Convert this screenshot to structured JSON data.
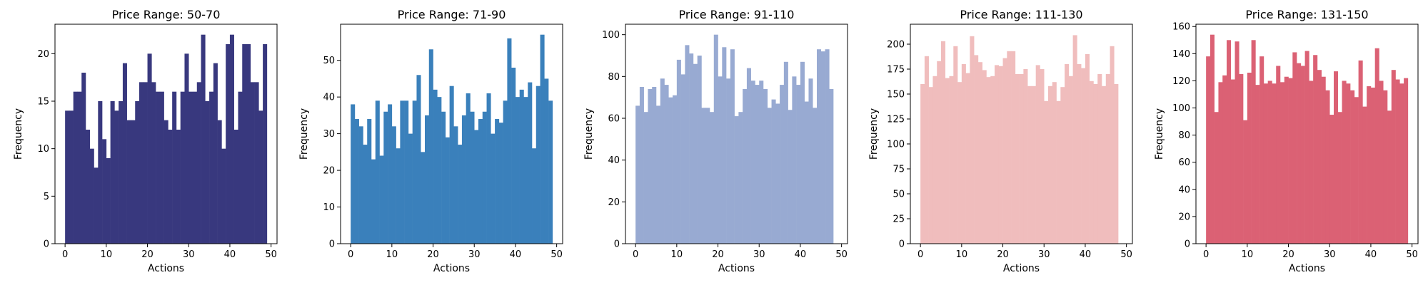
{
  "chart_data": [
    {
      "type": "bar",
      "title": "Price Range: 50-70",
      "xlabel": "Actions",
      "ylabel": "Frequency",
      "color": "#38387e",
      "xlim": [
        -2.45,
        51.45
      ],
      "ylim": [
        0,
        23.1
      ],
      "xticks": [
        0,
        10,
        20,
        30,
        40,
        50
      ],
      "yticks": [
        0,
        5,
        10,
        15,
        20
      ],
      "x": [
        0,
        1,
        2,
        3,
        4,
        5,
        6,
        7,
        8,
        9,
        10,
        11,
        12,
        13,
        14,
        15,
        16,
        17,
        18,
        19,
        20,
        21,
        22,
        23,
        24,
        25,
        26,
        27,
        28,
        29,
        30,
        31,
        32,
        33,
        34,
        35,
        36,
        37,
        38,
        39,
        40,
        41,
        42,
        43,
        44,
        45,
        46,
        47,
        48,
        49
      ],
      "values": [
        14,
        14,
        16,
        16,
        18,
        12,
        10,
        8,
        15,
        11,
        9,
        15,
        14,
        15,
        19,
        13,
        13,
        15,
        17,
        17,
        20,
        17,
        16,
        16,
        13,
        12,
        16,
        12,
        16,
        20,
        16,
        16,
        17,
        22,
        15,
        16,
        19,
        13,
        10,
        21,
        22,
        12,
        16,
        21,
        21,
        17,
        17,
        14,
        21,
        0
      ]
    },
    {
      "type": "bar",
      "title": "Price Range: 71-90",
      "xlabel": "Actions",
      "ylabel": "Frequency",
      "color": "#3a80bb",
      "xlim": [
        -2.45,
        51.45
      ],
      "ylim": [
        0,
        59.85
      ],
      "xticks": [
        0,
        10,
        20,
        30,
        40,
        50
      ],
      "yticks": [
        0,
        10,
        20,
        30,
        40,
        50
      ],
      "x": [
        0,
        1,
        2,
        3,
        4,
        5,
        6,
        7,
        8,
        9,
        10,
        11,
        12,
        13,
        14,
        15,
        16,
        17,
        18,
        19,
        20,
        21,
        22,
        23,
        24,
        25,
        26,
        27,
        28,
        29,
        30,
        31,
        32,
        33,
        34,
        35,
        36,
        37,
        38,
        39,
        40,
        41,
        42,
        43,
        44,
        45,
        46,
        47,
        48,
        49
      ],
      "values": [
        38,
        34,
        32,
        27,
        34,
        23,
        39,
        24,
        36,
        38,
        32,
        26,
        39,
        39,
        30,
        39,
        46,
        25,
        35,
        53,
        42,
        40,
        36,
        29,
        43,
        32,
        27,
        35,
        41,
        36,
        31,
        34,
        36,
        41,
        30,
        34,
        33,
        39,
        56,
        48,
        40,
        42,
        40,
        44,
        26,
        43,
        57,
        45,
        39,
        0
      ]
    },
    {
      "type": "bar",
      "title": "Price Range: 91-110",
      "xlabel": "Actions",
      "ylabel": "Frequency",
      "color": "#98aad2",
      "xlim": [
        -2.45,
        51.45
      ],
      "ylim": [
        0,
        105
      ],
      "xticks": [
        0,
        10,
        20,
        30,
        40,
        50
      ],
      "yticks": [
        0,
        20,
        40,
        60,
        80,
        100
      ],
      "x": [
        0,
        1,
        2,
        3,
        4,
        5,
        6,
        7,
        8,
        9,
        10,
        11,
        12,
        13,
        14,
        15,
        16,
        17,
        18,
        19,
        20,
        21,
        22,
        23,
        24,
        25,
        26,
        27,
        28,
        29,
        30,
        31,
        32,
        33,
        34,
        35,
        36,
        37,
        38,
        39,
        40,
        41,
        42,
        43,
        44,
        45,
        46,
        47,
        48,
        49
      ],
      "values": [
        66,
        75,
        63,
        74,
        75,
        66,
        79,
        76,
        70,
        71,
        88,
        81,
        95,
        91,
        86,
        90,
        65,
        65,
        63,
        100,
        80,
        94,
        79,
        93,
        61,
        63,
        74,
        84,
        78,
        76,
        78,
        74,
        65,
        69,
        67,
        76,
        87,
        64,
        80,
        76,
        87,
        68,
        79,
        65,
        93,
        92,
        93,
        74,
        0,
        0
      ]
    },
    {
      "type": "bar",
      "title": "Price Range: 111-130",
      "xlabel": "Actions",
      "ylabel": "Frequency",
      "color": "#f0bdbd",
      "xlim": [
        -2.45,
        51.45
      ],
      "ylim": [
        0,
        220
      ],
      "xticks": [
        0,
        10,
        20,
        30,
        40,
        50
      ],
      "yticks": [
        0,
        25,
        50,
        75,
        100,
        125,
        150,
        175,
        200
      ],
      "x": [
        0,
        1,
        2,
        3,
        4,
        5,
        6,
        7,
        8,
        9,
        10,
        11,
        12,
        13,
        14,
        15,
        16,
        17,
        18,
        19,
        20,
        21,
        22,
        23,
        24,
        25,
        26,
        27,
        28,
        29,
        30,
        31,
        32,
        33,
        34,
        35,
        36,
        37,
        38,
        39,
        40,
        41,
        42,
        43,
        44,
        45,
        46,
        47,
        48,
        49
      ],
      "values": [
        160,
        188,
        157,
        168,
        183,
        203,
        166,
        168,
        198,
        162,
        180,
        171,
        208,
        189,
        182,
        174,
        167,
        168,
        179,
        178,
        186,
        193,
        193,
        170,
        170,
        175,
        158,
        158,
        179,
        175,
        143,
        158,
        162,
        143,
        157,
        180,
        168,
        209,
        180,
        176,
        190,
        163,
        160,
        170,
        158,
        170,
        198,
        160,
        0,
        0
      ]
    },
    {
      "type": "bar",
      "title": "Price Range: 131-150",
      "xlabel": "Actions",
      "ylabel": "Frequency",
      "color": "#db6174",
      "xlim": [
        -2.45,
        51.45
      ],
      "ylim": [
        0,
        161.7
      ],
      "xticks": [
        0,
        10,
        20,
        30,
        40,
        50
      ],
      "yticks": [
        0,
        20,
        40,
        60,
        80,
        100,
        120,
        140,
        160
      ],
      "x": [
        0,
        1,
        2,
        3,
        4,
        5,
        6,
        7,
        8,
        9,
        10,
        11,
        12,
        13,
        14,
        15,
        16,
        17,
        18,
        19,
        20,
        21,
        22,
        23,
        24,
        25,
        26,
        27,
        28,
        29,
        30,
        31,
        32,
        33,
        34,
        35,
        36,
        37,
        38,
        39,
        40,
        41,
        42,
        43,
        44,
        45,
        46,
        47,
        48,
        49
      ],
      "values": [
        138,
        154,
        97,
        119,
        124,
        150,
        121,
        149,
        125,
        91,
        126,
        150,
        117,
        138,
        118,
        120,
        118,
        131,
        119,
        123,
        122,
        141,
        133,
        131,
        142,
        120,
        139,
        128,
        123,
        113,
        95,
        127,
        97,
        120,
        118,
        113,
        108,
        135,
        101,
        116,
        115,
        144,
        120,
        113,
        98,
        128,
        121,
        118,
        122,
        0
      ]
    }
  ]
}
